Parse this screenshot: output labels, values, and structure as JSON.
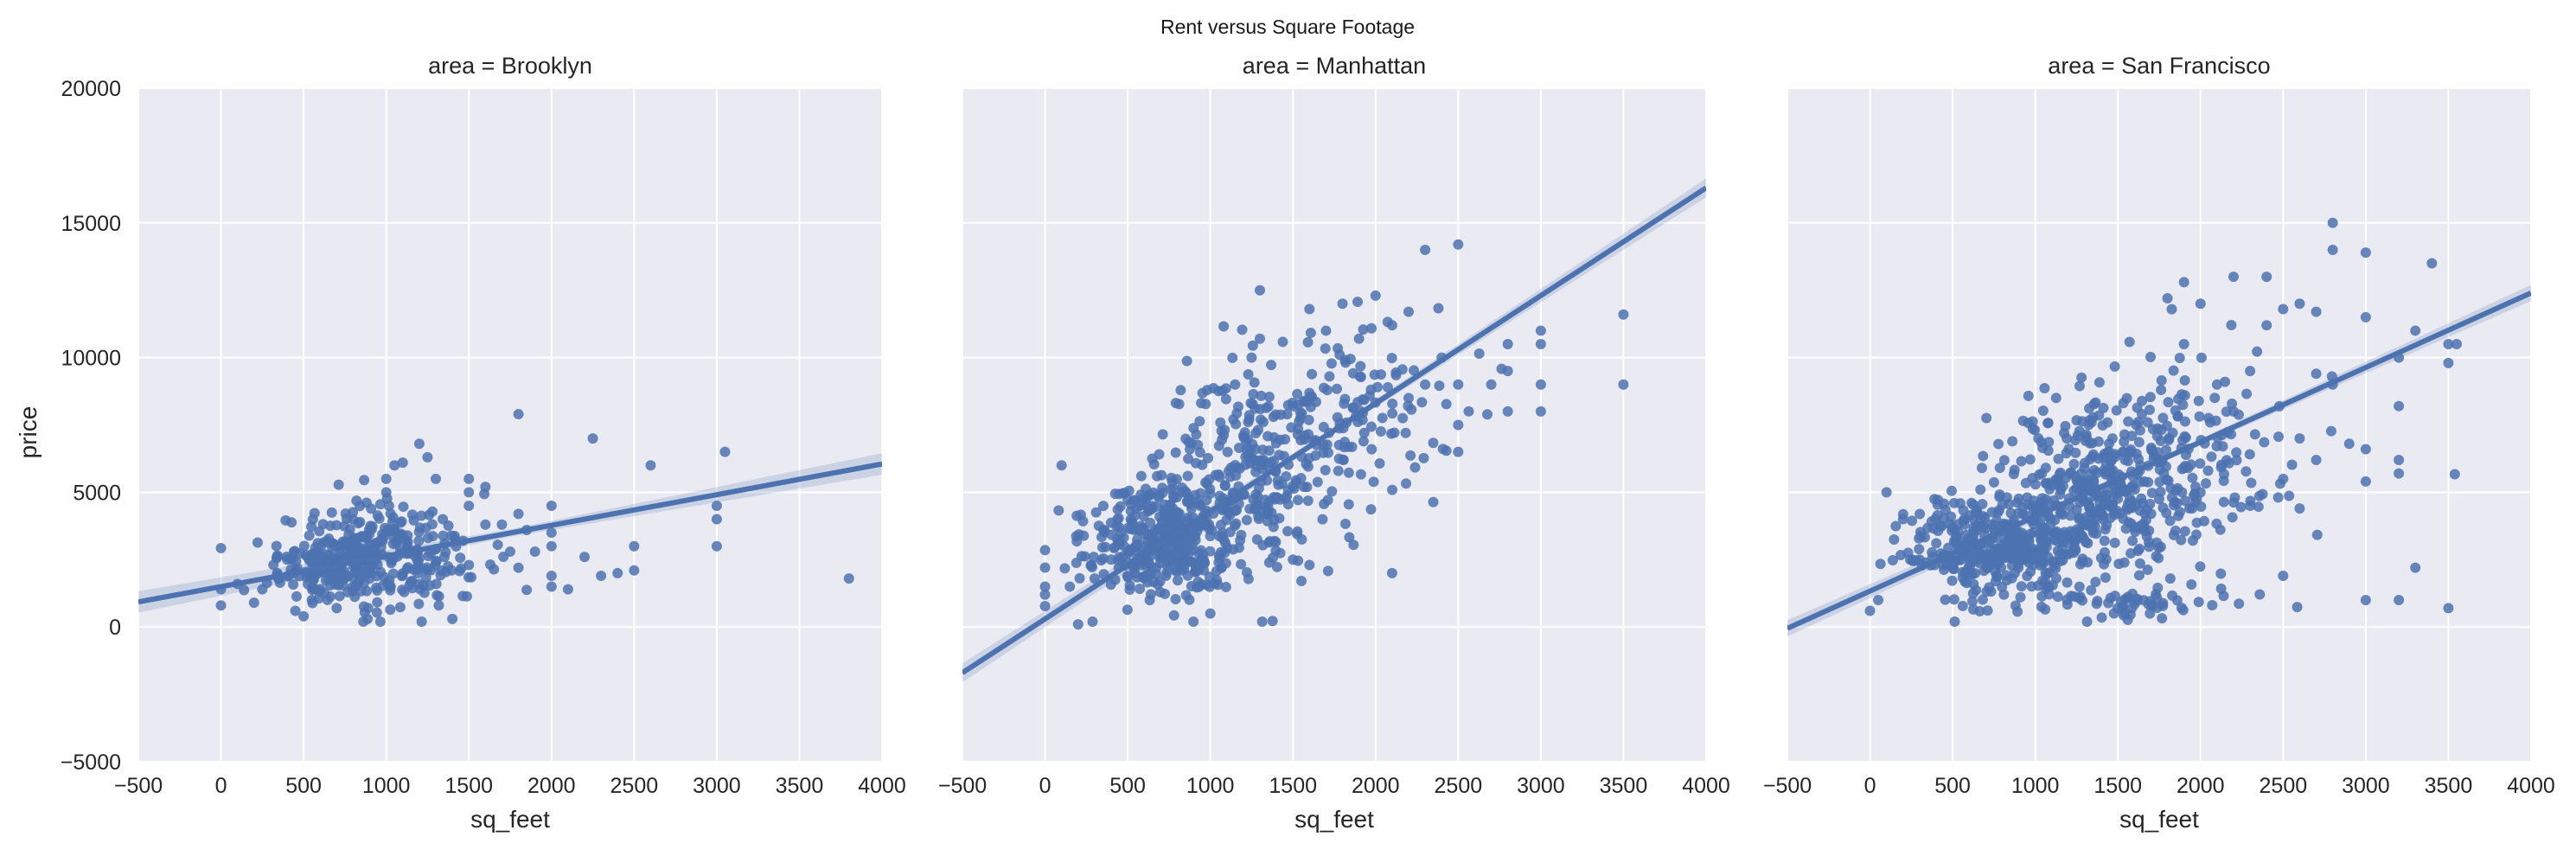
{
  "chart_data": {
    "type": "scatter",
    "title": "Rent versus Square Footage",
    "xlabel": "sq_feet",
    "ylabel": "price",
    "xlim": [
      -500,
      4000
    ],
    "ylim": [
      -5000,
      20000
    ],
    "x_ticks": [
      "−500",
      "0",
      "500",
      "1000",
      "1500",
      "2000",
      "2500",
      "3000",
      "3500",
      "4000"
    ],
    "y_ticks": [
      "−5000",
      "0",
      "5000",
      "10000",
      "15000",
      "20000"
    ],
    "grid": true,
    "colors": {
      "points": "#4c72b0",
      "background": "#eaeaf2",
      "grid": "#ffffff"
    },
    "facets": [
      {
        "title": "area = Brooklyn",
        "regression": {
          "x": [
            -500,
            4000
          ],
          "y": [
            930,
            6050
          ],
          "ci_halfwidth_at_ends": 400
        },
        "clusters": [
          {
            "cx": 850,
            "cy": 2600,
            "sx": 250,
            "sy": 900,
            "n": 260
          },
          {
            "cx": 1250,
            "cy": 3000,
            "sx": 200,
            "sy": 900,
            "n": 70
          },
          {
            "cx": 600,
            "cy": 2000,
            "sx": 160,
            "sy": 500,
            "n": 60
          }
        ],
        "points": [
          [
            0,
            800
          ],
          [
            0,
            1400
          ],
          [
            100,
            1600
          ],
          [
            200,
            900
          ],
          [
            250,
            1400
          ],
          [
            350,
            1800
          ],
          [
            400,
            2500
          ],
          [
            450,
            600
          ],
          [
            500,
            400
          ],
          [
            550,
            1000
          ],
          [
            700,
            700
          ],
          [
            1000,
            5000
          ],
          [
            1000,
            5500
          ],
          [
            1050,
            6000
          ],
          [
            1100,
            6100
          ],
          [
            1200,
            6800
          ],
          [
            1250,
            6300
          ],
          [
            1300,
            5500
          ],
          [
            1500,
            5500
          ],
          [
            1500,
            5000
          ],
          [
            1500,
            4500
          ],
          [
            1500,
            2300
          ],
          [
            1400,
            300
          ],
          [
            1600,
            3800
          ],
          [
            1600,
            5200
          ],
          [
            1700,
            3800
          ],
          [
            1750,
            2800
          ],
          [
            1800,
            7900
          ],
          [
            1800,
            4200
          ],
          [
            1800,
            2200
          ],
          [
            1850,
            3600
          ],
          [
            1900,
            2800
          ],
          [
            2000,
            4500
          ],
          [
            2000,
            3500
          ],
          [
            2000,
            3000
          ],
          [
            2000,
            1500
          ],
          [
            2100,
            1400
          ],
          [
            2000,
            1900
          ],
          [
            2200,
            2600
          ],
          [
            2250,
            7000
          ],
          [
            2300,
            1900
          ],
          [
            2400,
            2000
          ],
          [
            2500,
            3000
          ],
          [
            2500,
            2100
          ],
          [
            2600,
            6000
          ],
          [
            3000,
            4000
          ],
          [
            3000,
            4500
          ],
          [
            3000,
            3000
          ],
          [
            3050,
            6500
          ],
          [
            3800,
            1800
          ]
        ]
      },
      {
        "title": "area = Manhattan",
        "regression": {
          "x": [
            -500,
            4000
          ],
          "y": [
            -1700,
            16300
          ],
          "ci_halfwidth_at_ends": 350
        },
        "clusters": [
          {
            "cx": 700,
            "cy": 3300,
            "sx": 230,
            "sy": 1100,
            "n": 380
          },
          {
            "cx": 1200,
            "cy": 5500,
            "sx": 260,
            "sy": 1800,
            "n": 240
          },
          {
            "cx": 1800,
            "cy": 8000,
            "sx": 330,
            "sy": 1700,
            "n": 140
          }
        ],
        "points": [
          [
            0,
            1500
          ],
          [
            0,
            1200
          ],
          [
            100,
            6000
          ],
          [
            150,
            1500
          ],
          [
            200,
            100
          ],
          [
            300,
            1800
          ],
          [
            400,
            2500
          ],
          [
            1000,
            500
          ],
          [
            1300,
            12500
          ],
          [
            1600,
            11800
          ],
          [
            1700,
            11000
          ],
          [
            1800,
            12000
          ],
          [
            1900,
            10700
          ],
          [
            2000,
            12300
          ],
          [
            2100,
            11200
          ],
          [
            2200,
            11700
          ],
          [
            2300,
            14000
          ],
          [
            2500,
            14200
          ],
          [
            2500,
            9000
          ],
          [
            2500,
            7500
          ],
          [
            2500,
            6500
          ],
          [
            2800,
            10500
          ],
          [
            2800,
            8000
          ],
          [
            2800,
            9500
          ],
          [
            3000,
            10500
          ],
          [
            3000,
            11000
          ],
          [
            3000,
            9000
          ],
          [
            3000,
            8000
          ],
          [
            3500,
            11600
          ],
          [
            3500,
            9000
          ],
          [
            2100,
            2000
          ],
          [
            2300,
            9000
          ],
          [
            2400,
            10000
          ],
          [
            2700,
            9000
          ],
          [
            2200,
            8500
          ],
          [
            1500,
            2500
          ],
          [
            1600,
            2300
          ],
          [
            1300,
            10700
          ],
          [
            1250,
            10000
          ],
          [
            1150,
            9000
          ]
        ]
      },
      {
        "title": "area = San Francisco",
        "regression": {
          "x": [
            -500,
            4000
          ],
          "y": [
            -50,
            12400
          ],
          "ci_halfwidth_at_ends": 300
        },
        "clusters": [
          {
            "cx": 800,
            "cy": 3000,
            "sx": 280,
            "sy": 900,
            "n": 380
          },
          {
            "cx": 1350,
            "cy": 5000,
            "sx": 300,
            "sy": 1400,
            "n": 330
          },
          {
            "cx": 1900,
            "cy": 6500,
            "sx": 400,
            "sy": 2000,
            "n": 160
          },
          {
            "cx": 1500,
            "cy": 1000,
            "sx": 450,
            "sy": 300,
            "n": 70
          }
        ],
        "points": [
          [
            0,
            600
          ],
          [
            50,
            1000
          ],
          [
            100,
            5000
          ],
          [
            200,
            4000
          ],
          [
            300,
            2500
          ],
          [
            2800,
            15000
          ],
          [
            2800,
            14000
          ],
          [
            3000,
            13900
          ],
          [
            2400,
            13000
          ],
          [
            2200,
            13000
          ],
          [
            1900,
            12800
          ],
          [
            1800,
            12200
          ],
          [
            2000,
            12000
          ],
          [
            2600,
            12000
          ],
          [
            2700,
            11700
          ],
          [
            3000,
            11500
          ],
          [
            3400,
            13500
          ],
          [
            3300,
            11000
          ],
          [
            3200,
            10000
          ],
          [
            3200,
            8200
          ],
          [
            3200,
            6200
          ],
          [
            3200,
            5700
          ],
          [
            3000,
            6600
          ],
          [
            3000,
            5400
          ],
          [
            3000,
            1000
          ],
          [
            3200,
            1000
          ],
          [
            3300,
            2200
          ],
          [
            3500,
            10500
          ],
          [
            3550,
            10500
          ],
          [
            3500,
            9800
          ],
          [
            3500,
            700
          ],
          [
            2500,
            11800
          ],
          [
            2400,
            11200
          ],
          [
            2700,
            9400
          ],
          [
            2800,
            9000
          ],
          [
            2600,
            7000
          ],
          [
            2500,
            1900
          ],
          [
            2500,
            5500
          ],
          [
            2300,
            9500
          ],
          [
            2200,
            8000
          ],
          [
            2300,
            4500
          ],
          [
            2600,
            4400
          ],
          [
            2900,
            6800
          ],
          [
            2700,
            6200
          ],
          [
            2100,
            9000
          ],
          [
            1900,
            10500
          ]
        ]
      }
    ]
  }
}
